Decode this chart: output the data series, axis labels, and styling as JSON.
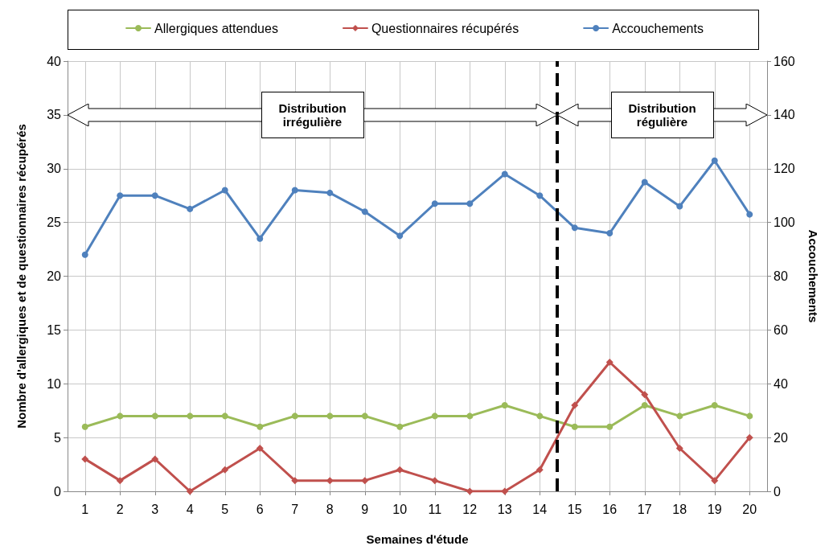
{
  "chart_data": {
    "type": "line",
    "xlabel": "Semaines d'étude",
    "ylabel": "Nombre d'allergiques et de questionnaires récupérés",
    "y2label": "Accouchements",
    "x": [
      1,
      2,
      3,
      4,
      5,
      6,
      7,
      8,
      9,
      10,
      11,
      12,
      13,
      14,
      15,
      16,
      17,
      18,
      19,
      20
    ],
    "xlim": [
      0.5,
      20.5
    ],
    "xticks": [
      1,
      2,
      3,
      4,
      5,
      6,
      7,
      8,
      9,
      10,
      11,
      12,
      13,
      14,
      15,
      16,
      17,
      18,
      19,
      20
    ],
    "series": [
      {
        "name": "Allergiques attendues",
        "color": "#9bbb59",
        "marker": "circle",
        "values": [
          6,
          7,
          7,
          7,
          7,
          6,
          7,
          7,
          7,
          6,
          7,
          7,
          8,
          7,
          6,
          6,
          8,
          7,
          8,
          7
        ]
      },
      {
        "name": "Questionnaires récupérés",
        "color": "#c0504d",
        "marker": "diamond",
        "values": [
          3,
          1,
          3,
          0,
          2,
          4,
          1,
          1,
          1,
          2,
          1,
          0,
          0,
          2,
          8,
          12,
          9,
          4,
          1,
          5
        ]
      },
      {
        "name": "Accouchements",
        "color": "#4f81bd",
        "marker": "circle",
        "axis": "y2",
        "values": [
          88,
          110,
          110,
          105,
          112,
          94,
          112,
          111,
          104,
          95,
          107,
          107,
          118,
          110,
          98,
          96,
          115,
          106,
          123,
          103
        ]
      }
    ],
    "ylim": [
      0,
      40
    ],
    "yticks": [
      0,
      5,
      10,
      15,
      20,
      25,
      30,
      35,
      40
    ],
    "y2lim": [
      0,
      160
    ],
    "y2ticks": [
      0,
      20,
      40,
      60,
      80,
      100,
      120,
      140,
      160
    ],
    "ref_lines": [
      {
        "axis": "x",
        "value": 14.5,
        "color": "#000000",
        "line_style": "dashed"
      }
    ],
    "annotations": [
      "Distribution irrégulière",
      "Distribution régulière"
    ],
    "grid": true,
    "legend": "top"
  }
}
